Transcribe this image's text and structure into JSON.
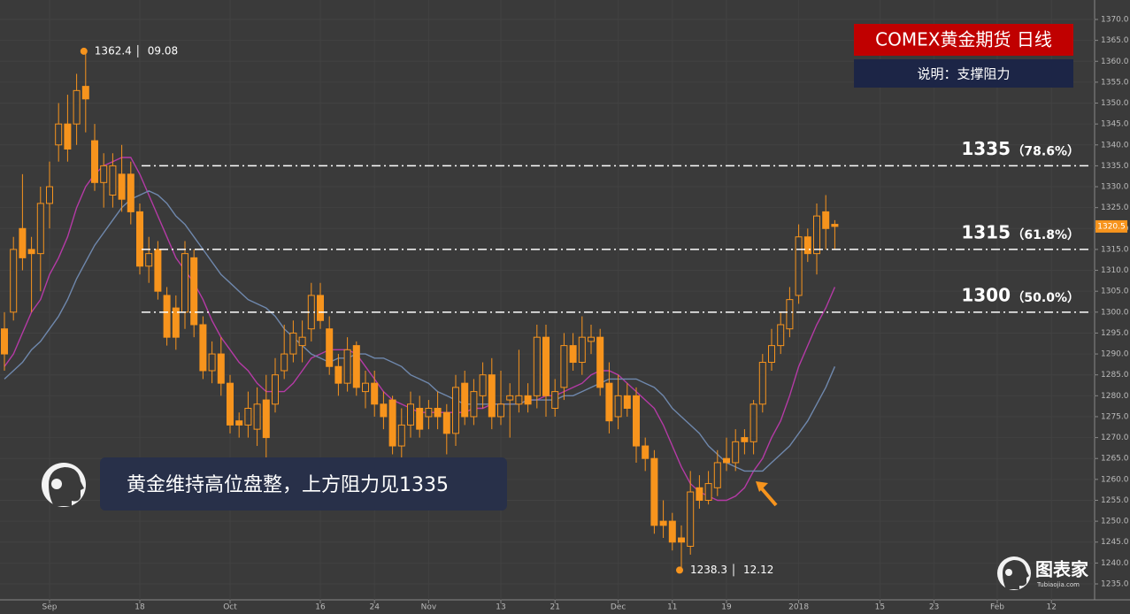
{
  "chart_data": {
    "type": "candlestick",
    "title": "COMEX黄金期货  日线",
    "subtitle": "说明：支撑阻力",
    "caption": "黄金维持高位盘整，上方阻力见1335",
    "brand": "图表家",
    "brand_url": "Tubiaojia.com",
    "peak_date": "09.08",
    "trough_date": "12.12",
    "color": "#f7941d",
    "grid": true,
    "categories": [
      null,
      null,
      null,
      null,
      null,
      "Sep",
      null,
      null,
      null,
      null,
      null,
      null,
      null,
      null,
      null,
      "18",
      null,
      null,
      null,
      null,
      null,
      null,
      null,
      null,
      null,
      "Oct",
      null,
      null,
      null,
      null,
      null,
      null,
      null,
      null,
      null,
      "16",
      null,
      null,
      null,
      null,
      null,
      "24",
      null,
      null,
      null,
      null,
      null,
      "Nov",
      null,
      null,
      null,
      null,
      null,
      null,
      null,
      "13",
      null,
      null,
      null,
      null,
      null,
      "21",
      null,
      null,
      null,
      null,
      null,
      null,
      "Dec",
      null,
      null,
      null,
      null,
      null,
      "11",
      null,
      null,
      null,
      null,
      null,
      "19",
      null,
      null,
      null,
      null,
      null,
      null,
      null,
      "2018",
      null,
      null,
      null,
      null,
      null,
      null,
      null,
      null,
      "15",
      null,
      null,
      null,
      null,
      null,
      "23",
      null,
      null,
      null,
      null,
      null,
      null,
      "Feb",
      null,
      null,
      null,
      null,
      null,
      "12"
    ],
    "open": [
      1296,
      1300,
      1320,
      1315,
      1314,
      1326,
      1340,
      1345,
      1345,
      1354,
      1341,
      1331,
      1328,
      1333,
      1333,
      1324,
      1311,
      1315,
      1304,
      1301,
      1300,
      1313,
      1297,
      1286,
      1290,
      1283,
      1274,
      1273,
      1272,
      1279,
      1278,
      1286,
      1290,
      1292,
      1296,
      1304,
      1296,
      1287,
      1283,
      1292,
      1281,
      1283,
      1278,
      1279,
      1268,
      1273,
      1277,
      1275,
      1277,
      1276,
      1271,
      1283,
      1275,
      1280,
      1285,
      1275,
      1279,
      1278,
      1280,
      1280,
      1294,
      1277,
      1282,
      1292,
      1288,
      1293,
      1294,
      1283,
      1275,
      1280,
      1280,
      1268,
      1265,
      1250,
      1250,
      1246,
      1244,
      1258,
      1255,
      1258,
      1265,
      1264,
      1270,
      1269,
      1278,
      1288,
      1292,
      1296,
      1304,
      1318,
      1314,
      1324,
      1321,
      null,
      null,
      null,
      null,
      null,
      null,
      null,
      null,
      null,
      null,
      null,
      null,
      null,
      null,
      null,
      null,
      null,
      null,
      null,
      null,
      null,
      null,
      null,
      null
    ],
    "high": [
      1300,
      1318,
      1333,
      1318,
      1330,
      1336,
      1350,
      1352,
      1357,
      1362.4,
      1345,
      1338,
      1338,
      1340,
      1336,
      1326,
      1318,
      1317,
      1306,
      1304,
      1317,
      1315,
      1299,
      1293,
      1294,
      1285,
      1276,
      1281,
      1282,
      1285,
      1289,
      1297,
      1298,
      1298,
      1307,
      1307,
      1299,
      1290,
      1294,
      1293,
      1286,
      1286,
      1281,
      1280,
      1277,
      1281,
      1280,
      1279,
      1281,
      1278,
      1285,
      1286,
      1284,
      1288,
      1289,
      1286,
      1283,
      1291,
      1283,
      1297,
      1297,
      1284,
      1295,
      1295,
      1299,
      1297,
      1296,
      1288,
      1285,
      1283,
      1282,
      1270,
      1267,
      1255,
      1252,
      1249,
      1262,
      1261,
      1262,
      1267,
      1270,
      1272,
      1272,
      1279,
      1290,
      1296,
      1300,
      1306,
      1321,
      1320,
      1326,
      1328,
      1322,
      null,
      null,
      null,
      null,
      null,
      null,
      null,
      null,
      null,
      null,
      null,
      null,
      null,
      null,
      null,
      null,
      null,
      null,
      null,
      null,
      null,
      null,
      null,
      null
    ],
    "low": [
      1286,
      1298,
      1310,
      1300,
      1305,
      1320,
      1336,
      1336,
      1340,
      1343,
      1329,
      1325,
      1325,
      1324,
      1321,
      1309,
      1307,
      1303,
      1292,
      1291,
      1296,
      1294,
      1284,
      1283,
      1280,
      1271,
      1270,
      1270,
      1268,
      1265,
      1276,
      1284,
      1288,
      1288,
      1293,
      1296,
      1285,
      1280,
      1281,
      1280,
      1277,
      1275,
      1272,
      1266,
      1265,
      1270,
      1270,
      1272,
      1272,
      1266,
      1268,
      1273,
      1273,
      1277,
      1272,
      1273,
      1270,
      1276,
      1276,
      1277,
      1275,
      1275,
      1279,
      1286,
      1285,
      1290,
      1280,
      1271,
      1272,
      1275,
      1264,
      1262,
      1247,
      1246,
      1243,
      1238.3,
      1242,
      1253,
      1254,
      1256,
      1262,
      1262,
      1266,
      1266,
      1276,
      1286,
      1290,
      1294,
      1302,
      1312,
      1309,
      1315,
      1315,
      null,
      null,
      null,
      null,
      null,
      null,
      null,
      null,
      null,
      null,
      null,
      null,
      null,
      null,
      null,
      null,
      null,
      null,
      null,
      null,
      null,
      null,
      null,
      null
    ],
    "close": [
      1290,
      1315,
      1313,
      1314,
      1326,
      1330,
      1345,
      1339,
      1353,
      1351,
      1331,
      1335,
      1335,
      1327,
      1324,
      1311,
      1314,
      1305,
      1294,
      1294,
      1314,
      1297,
      1286,
      1290,
      1283,
      1273,
      1273,
      1277,
      1278,
      1270,
      1285,
      1290,
      1295,
      1294,
      1304,
      1298,
      1287,
      1283,
      1291,
      1282,
      1283,
      1278,
      1275,
      1268,
      1273,
      1278,
      1272,
      1277,
      1275,
      1271,
      1282,
      1275,
      1281,
      1285,
      1275,
      1278,
      1280,
      1280,
      1278,
      1294,
      1280,
      1281,
      1292,
      1288,
      1294,
      1294,
      1282,
      1274,
      1280,
      1277,
      1268,
      1265,
      1249,
      1249,
      1245,
      1245,
      1257,
      1255,
      1259,
      1264,
      1264,
      1269,
      1269,
      1278,
      1288,
      1292,
      1297,
      1303,
      1318,
      1314,
      1323,
      1320,
      1320.5,
      null,
      null,
      null,
      null,
      null,
      null,
      null,
      null,
      null,
      null,
      null,
      null,
      null,
      null,
      null,
      null,
      null,
      null,
      null,
      null,
      null,
      null,
      null,
      null
    ],
    "series": [
      {
        "color": "#b53aa6",
        "values": [
          1287,
          1290,
          1295,
          1300,
          1303,
          1309,
          1313,
          1318,
          1325,
          1330,
          1333,
          1335,
          1336,
          1337,
          1337,
          1333,
          1328,
          1323,
          1318,
          1313,
          1310,
          1307,
          1303,
          1298,
          1294,
          1291,
          1288,
          1286,
          1283,
          1281,
          1281,
          1281,
          1283,
          1286,
          1289,
          1290,
          1291,
          1291,
          1291,
          1290,
          1287,
          1284,
          1281,
          1279,
          1278,
          1277,
          1276,
          1276,
          1276,
          1276,
          1276,
          1276,
          1277,
          1277,
          1278,
          1278,
          1278,
          1278,
          1279,
          1279,
          1280,
          1280,
          1281,
          1282,
          1283,
          1285,
          1286,
          1286,
          1285,
          1283,
          1281,
          1279,
          1277,
          1273,
          1268,
          1263,
          1259,
          1257,
          1256,
          1255,
          1255,
          1256,
          1258,
          1262,
          1265,
          1270,
          1274,
          1280,
          1287,
          1292,
          1297,
          1301,
          1306,
          null,
          null,
          null,
          null,
          null,
          null,
          null,
          null,
          null,
          null,
          null,
          null,
          null,
          null,
          null,
          null,
          null,
          null,
          null,
          null,
          null,
          null,
          null,
          null
        ]
      },
      {
        "color": "#6f88ad",
        "values": [
          1284,
          1286,
          1288,
          1291,
          1293,
          1296,
          1299,
          1303,
          1308,
          1312,
          1316,
          1319,
          1322,
          1325,
          1327,
          1328,
          1329,
          1328,
          1326,
          1323,
          1321,
          1318,
          1315,
          1312,
          1309,
          1307,
          1305,
          1303,
          1302,
          1301,
          1299,
          1296,
          1294,
          1292,
          1290,
          1289,
          1288,
          1289,
          1289,
          1290,
          1290,
          1289,
          1289,
          1288,
          1287,
          1285,
          1284,
          1283,
          1281,
          1280,
          1279,
          1278,
          1278,
          1278,
          1278,
          1278,
          1278,
          1278,
          1279,
          1279,
          1279,
          1279,
          1280,
          1280,
          1281,
          1282,
          1283,
          1284,
          1284,
          1284,
          1284,
          1283,
          1282,
          1280,
          1277,
          1275,
          1273,
          1271,
          1268,
          1266,
          1264,
          1263,
          1262,
          1262,
          1262,
          1264,
          1266,
          1268,
          1271,
          1274,
          1278,
          1282,
          1287,
          null,
          null,
          null,
          null,
          null,
          null,
          null,
          null,
          null,
          null,
          null,
          null,
          null,
          null,
          null,
          null,
          null,
          null,
          null,
          null,
          null,
          null,
          null,
          null
        ]
      }
    ],
    "levels": [
      {
        "value": 1335,
        "ratio": "（78.6%）"
      },
      {
        "value": 1315,
        "ratio": "（61.8%）"
      },
      {
        "value": 1300,
        "ratio": "（50.0%）"
      }
    ],
    "ylim": [
      1235,
      1370
    ],
    "yticks": [
      {
        "value": 1235,
        "label": "1235.0"
      },
      {
        "value": 1240,
        "label": "1240.0"
      },
      {
        "value": 1245,
        "label": "1245.0"
      },
      {
        "value": 1250,
        "label": "1250.0"
      },
      {
        "value": 1255,
        "label": "1255.0"
      },
      {
        "value": 1260,
        "label": "1260.0"
      },
      {
        "value": 1265,
        "label": "1265.0"
      },
      {
        "value": 1270,
        "label": "1270.0"
      },
      {
        "value": 1275,
        "label": "1275.0"
      },
      {
        "value": 1280,
        "label": "1280.0"
      },
      {
        "value": 1285,
        "label": "1285.0"
      },
      {
        "value": 1290,
        "label": "1290.0"
      },
      {
        "value": 1295,
        "label": "1295.0"
      },
      {
        "value": 1300,
        "label": "1300.0"
      },
      {
        "value": 1305,
        "label": "1305.0"
      },
      {
        "value": 1310,
        "label": "1310.0"
      },
      {
        "value": 1315,
        "label": "1315.0"
      },
      {
        "value": 1320,
        "label": "1320.0"
      },
      {
        "value": 1325,
        "label": "1325.0"
      },
      {
        "value": 1330,
        "label": "1330.0"
      },
      {
        "value": 1335,
        "label": "1335.0"
      },
      {
        "value": 1340,
        "label": "1340.0"
      },
      {
        "value": 1345,
        "label": "1345.0"
      },
      {
        "value": 1350,
        "label": "1350.0"
      },
      {
        "value": 1355,
        "label": "1355.0"
      },
      {
        "value": 1360,
        "label": "1360.0"
      },
      {
        "value": 1365,
        "label": "1365.0"
      },
      {
        "value": 1370,
        "label": "1370.0"
      }
    ]
  }
}
